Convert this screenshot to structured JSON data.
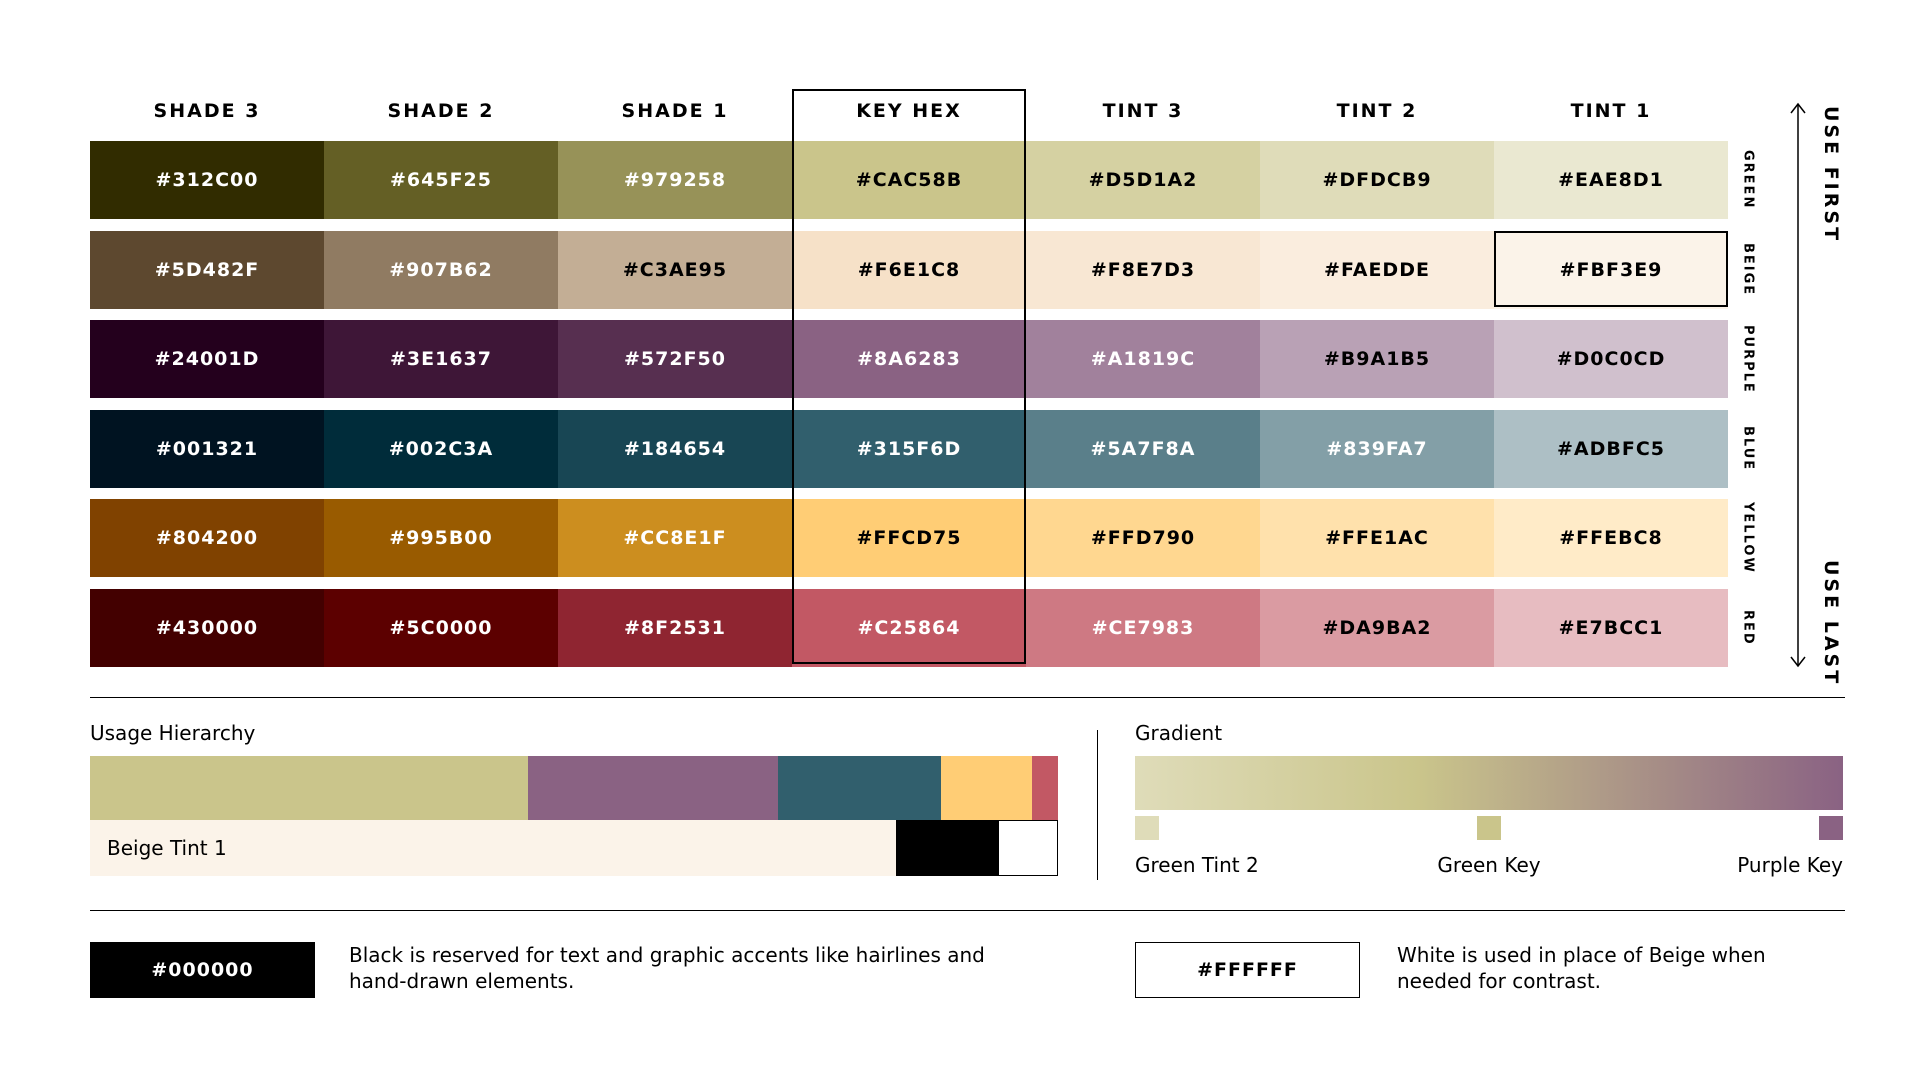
{
  "columns": [
    "SHADE 3",
    "SHADE 2",
    "SHADE 1",
    "KEY HEX",
    "TINT 3",
    "TINT 2",
    "TINT 1"
  ],
  "rows": [
    {
      "name": "GREEN",
      "hex": [
        "#312C00",
        "#645F25",
        "#979258",
        "#CAC58B",
        "#D5D1A2",
        "#DFDCB9",
        "#EAE8D1"
      ]
    },
    {
      "name": "BEIGE",
      "hex": [
        "#5D482F",
        "#907B62",
        "#C3AE95",
        "#F6E1C8",
        "#F8E7D3",
        "#FAEDDE",
        "#FBF3E9"
      ]
    },
    {
      "name": "PURPLE",
      "hex": [
        "#24001D",
        "#3E1637",
        "#572F50",
        "#8A6283",
        "#A1819C",
        "#B9A1B5",
        "#D0C0CD"
      ]
    },
    {
      "name": "BLUE",
      "hex": [
        "#001321",
        "#002C3A",
        "#184654",
        "#315F6D",
        "#5A7F8A",
        "#839FA7",
        "#ADBFC5"
      ]
    },
    {
      "name": "YELLOW",
      "hex": [
        "#804200",
        "#995B00",
        "#CC8E1F",
        "#FFCD75",
        "#FFD790",
        "#FFE1AC",
        "#FFEBC8"
      ]
    },
    {
      "name": "RED",
      "hex": [
        "#430000",
        "#5C0000",
        "#8F2531",
        "#C25864",
        "#CE7983",
        "#DA9BA2",
        "#E7BCC1"
      ]
    }
  ],
  "side": {
    "top": "USE FIRST",
    "bottom": "USE LAST"
  },
  "usage": {
    "title": "Usage Hierarchy",
    "top_segments": [
      {
        "color": "#CAC58B",
        "share": 0.452
      },
      {
        "color": "#8A6283",
        "share": 0.259
      },
      {
        "color": "#315F6D",
        "share": 0.168
      },
      {
        "color": "#FFCD75",
        "share": 0.094
      },
      {
        "color": "#C25864",
        "share": 0.027
      }
    ],
    "bottom_segments": [
      {
        "color": "#FBF3E9",
        "share": 0.833,
        "label": "Beige Tint 1"
      },
      {
        "color": "#000000",
        "share": 0.105,
        "label": ""
      },
      {
        "color": "#FFFFFF",
        "share": 0.062,
        "label": ""
      }
    ]
  },
  "gradient": {
    "title": "Gradient",
    "stops": [
      {
        "label": "Green Tint 2",
        "color": "#DFDCB9"
      },
      {
        "label": "Green Key",
        "color": "#CAC58B"
      },
      {
        "label": "Purple Key",
        "color": "#8A6283"
      }
    ]
  },
  "black": {
    "hex": "#000000",
    "desc": "Black is reserved for text and graphic accents like hairlines and hand-drawn elements."
  },
  "white": {
    "hex": "#FFFFFF",
    "desc": "White is used in place of Beige when needed for contrast."
  }
}
